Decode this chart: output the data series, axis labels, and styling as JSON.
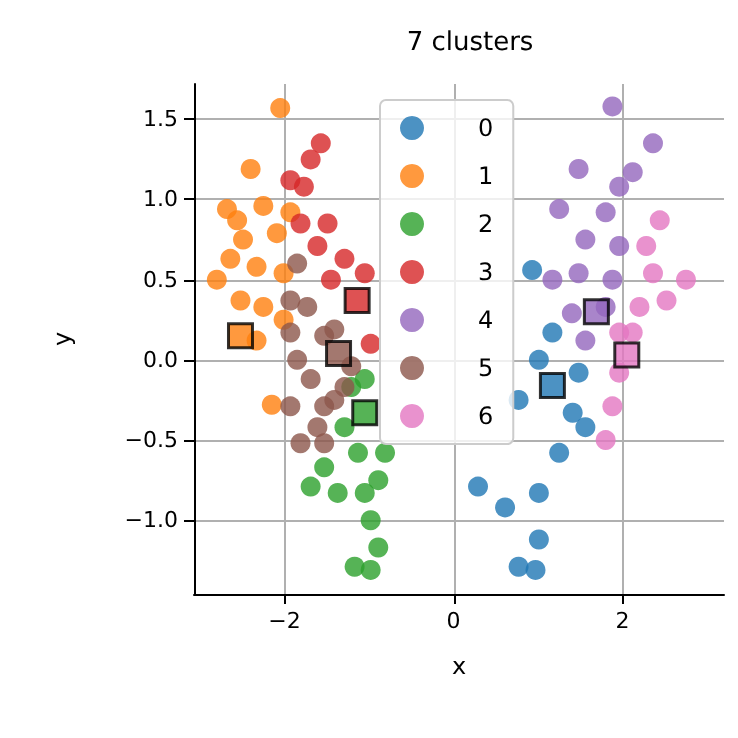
{
  "chart_data": {
    "type": "scatter",
    "title": "7 clusters",
    "xlabel": "x",
    "ylabel": "y",
    "xlim": [
      -3.07,
      3.2
    ],
    "ylim": [
      -1.46,
      1.72
    ],
    "xticks": [
      {
        "value": -2,
        "label": "−2"
      },
      0,
      2
    ],
    "yticks": [
      {
        "value": -1,
        "label": "−1.0"
      },
      {
        "value": -0.5,
        "label": "−0.5"
      },
      {
        "value": 0,
        "label": "0.0"
      },
      {
        "value": 0.5,
        "label": "0.5"
      },
      {
        "value": 1,
        "label": "1.0"
      },
      {
        "value": 1.5,
        "label": "1.5"
      }
    ],
    "grid": true,
    "legend": "top",
    "marker": "circle",
    "series": [
      {
        "name": "0",
        "color": "#1f77b4",
        "x": [
          0.93,
          1.17,
          1.01,
          1.48,
          1.56,
          0.77,
          0.29,
          0.61,
          1.01,
          1.25,
          1.01,
          0.77,
          0.97,
          1.41
        ],
        "values": [
          0.56,
          0.17,
          0.0,
          -0.08,
          -0.42,
          -0.25,
          -0.79,
          -0.92,
          -0.83,
          -0.58,
          -1.12,
          -1.29,
          -1.31,
          -0.33
        ]
      },
      {
        "name": "1",
        "color": "#ff7f0e",
        "x": [
          -2.05,
          -2.4,
          -2.68,
          -2.25,
          -2.49,
          -2.09,
          -2.8,
          -2.64,
          -2.33,
          -2.01,
          -2.52,
          -2.25,
          -2.01,
          -2.33,
          -2.15,
          -1.93,
          -2.56
        ],
        "values": [
          1.57,
          1.19,
          0.94,
          0.96,
          0.75,
          0.79,
          0.5,
          0.63,
          0.58,
          0.54,
          0.37,
          0.33,
          0.25,
          0.12,
          -0.28,
          0.92,
          0.87
        ]
      },
      {
        "name": "2",
        "color": "#2ca02c",
        "x": [
          -1.21,
          -1.05,
          -1.29,
          -1.13,
          -1.53,
          -1.69,
          -1.37,
          -1.05,
          -0.89,
          -0.98,
          -0.89,
          -1.17,
          -0.98,
          -0.81
        ],
        "values": [
          -0.17,
          -0.12,
          -0.42,
          -0.58,
          -0.67,
          -0.79,
          -0.83,
          -0.83,
          -0.75,
          -1.0,
          -1.17,
          -1.29,
          -1.31,
          -0.58
        ]
      },
      {
        "name": "3",
        "color": "#d62728",
        "x": [
          -1.57,
          -1.69,
          -1.93,
          -1.77,
          -1.81,
          -1.49,
          -1.61,
          -1.29,
          -1.05,
          -1.45,
          -0.98
        ],
        "values": [
          1.35,
          1.25,
          1.12,
          1.08,
          0.85,
          0.85,
          0.71,
          0.63,
          0.54,
          0.5,
          0.1
        ]
      },
      {
        "name": "4",
        "color": "#9467bd",
        "x": [
          1.88,
          2.36,
          2.12,
          1.48,
          1.96,
          1.25,
          1.8,
          1.56,
          1.96,
          1.17,
          1.48,
          1.88,
          1.4,
          1.56,
          1.8
        ],
        "values": [
          1.58,
          1.35,
          1.17,
          1.19,
          1.08,
          0.94,
          0.92,
          0.75,
          0.71,
          0.5,
          0.54,
          0.5,
          0.29,
          0.12,
          0.33
        ]
      },
      {
        "name": "5",
        "color": "#8c564b",
        "x": [
          -1.85,
          -1.93,
          -1.73,
          -1.93,
          -1.53,
          -1.41,
          -1.85,
          -1.69,
          -1.93,
          -1.53,
          -1.29,
          -1.61,
          -1.81,
          -1.53,
          -1.21,
          -1.41
        ],
        "values": [
          0.6,
          0.37,
          0.33,
          0.17,
          0.15,
          0.19,
          0.0,
          -0.12,
          -0.29,
          -0.29,
          -0.17,
          -0.42,
          -0.52,
          -0.52,
          -0.04,
          -0.25
        ]
      },
      {
        "name": "6",
        "color": "#e377c2",
        "x": [
          2.44,
          2.28,
          2.75,
          2.36,
          2.2,
          1.96,
          1.96,
          1.88,
          1.8,
          2.12,
          2.52
        ],
        "values": [
          0.87,
          0.71,
          0.5,
          0.54,
          0.33,
          0.17,
          -0.08,
          -0.29,
          -0.5,
          0.17,
          0.37
        ]
      },
      {
        "marker": "square",
        "x": [
          1.17,
          -2.52,
          -1.05,
          -1.14,
          1.69,
          -1.36,
          2.05
        ],
        "values": [
          -0.16,
          0.15,
          -0.33,
          0.37,
          0.3,
          0.04,
          0.03
        ],
        "colors": [
          "#1f77b4",
          "#ff7f0e",
          "#2ca02c",
          "#d62728",
          "#9467bd",
          "#8c564b",
          "#e377c2"
        ]
      }
    ]
  }
}
